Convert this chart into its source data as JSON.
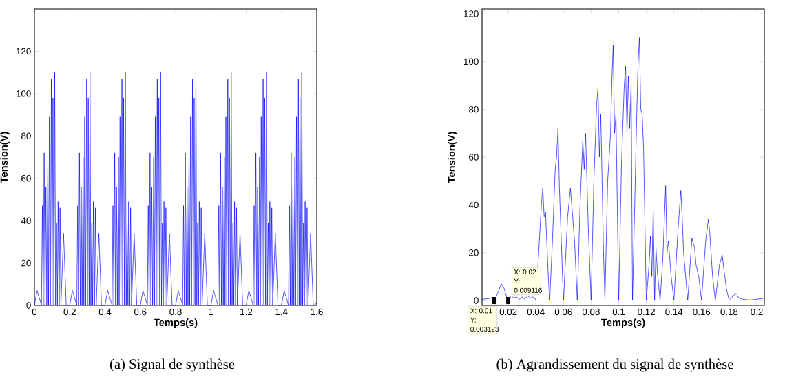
{
  "chart_data": [
    {
      "type": "line",
      "xlabel": "Temps(s)",
      "ylabel": "Tension(V)",
      "color": "#0000ff",
      "xlim": [
        0,
        1.6
      ],
      "ylim": [
        0,
        140
      ],
      "xticks": [
        0,
        0.2,
        0.4,
        0.6,
        0.8,
        1,
        1.2,
        1.4,
        1.6
      ],
      "yticks": [
        0,
        20,
        40,
        60,
        80,
        100,
        120
      ],
      "x": [
        0,
        0.015,
        0.04,
        0.045,
        0.05,
        0.055,
        0.06,
        0.065,
        0.07,
        0.076,
        0.08,
        0.085,
        0.09,
        0.096,
        0.1,
        0.105,
        0.11,
        0.115,
        0.12,
        0.125,
        0.13,
        0.134,
        0.14,
        0.145,
        0.15,
        0.165,
        0.18,
        0.2,
        0.215,
        0.24,
        0.245,
        0.25,
        0.255,
        0.26,
        0.265,
        0.27,
        0.276,
        0.28,
        0.285,
        0.29,
        0.296,
        0.3,
        0.305,
        0.31,
        0.315,
        0.32,
        0.325,
        0.33,
        0.334,
        0.34,
        0.345,
        0.35,
        0.365,
        0.38,
        0.4,
        0.415,
        0.44,
        0.445,
        0.45,
        0.455,
        0.46,
        0.465,
        0.47,
        0.476,
        0.48,
        0.485,
        0.49,
        0.496,
        0.5,
        0.505,
        0.51,
        0.515,
        0.52,
        0.525,
        0.53,
        0.534,
        0.54,
        0.545,
        0.55,
        0.565,
        0.58,
        0.6,
        0.615,
        0.64,
        0.645,
        0.65,
        0.655,
        0.66,
        0.665,
        0.67,
        0.676,
        0.68,
        0.685,
        0.69,
        0.696,
        0.7,
        0.705,
        0.71,
        0.715,
        0.72,
        0.725,
        0.73,
        0.734,
        0.74,
        0.745,
        0.75,
        0.765,
        0.78,
        0.8,
        0.815,
        0.84,
        0.845,
        0.85,
        0.855,
        0.86,
        0.865,
        0.87,
        0.876,
        0.88,
        0.885,
        0.89,
        0.896,
        0.9,
        0.905,
        0.91,
        0.915,
        0.92,
        0.925,
        0.93,
        0.934,
        0.94,
        0.945,
        0.95,
        0.965,
        0.98,
        1.0,
        1.015,
        1.04,
        1.045,
        1.05,
        1.055,
        1.06,
        1.065,
        1.07,
        1.076,
        1.08,
        1.085,
        1.09,
        1.096,
        1.1,
        1.105,
        1.11,
        1.115,
        1.12,
        1.125,
        1.13,
        1.134,
        1.14,
        1.145,
        1.15,
        1.165,
        1.18,
        1.2,
        1.215,
        1.24,
        1.245,
        1.25,
        1.255,
        1.26,
        1.265,
        1.27,
        1.276,
        1.28,
        1.285,
        1.29,
        1.296,
        1.3,
        1.305,
        1.31,
        1.315,
        1.32,
        1.325,
        1.33,
        1.334,
        1.34,
        1.345,
        1.35,
        1.365,
        1.38,
        1.4,
        1.415,
        1.44,
        1.445,
        1.45,
        1.455,
        1.46,
        1.465,
        1.47,
        1.476,
        1.48,
        1.485,
        1.49,
        1.496,
        1.5,
        1.505,
        1.51,
        1.515,
        1.52,
        1.525,
        1.53,
        1.534,
        1.54,
        1.545,
        1.55,
        1.565,
        1.58,
        1.6
      ],
      "values": [
        0,
        7,
        0,
        47,
        0,
        72,
        0,
        56,
        0,
        70,
        0,
        89,
        0,
        107,
        0,
        98,
        0,
        110,
        0,
        39,
        0,
        49,
        0,
        46,
        0,
        34,
        0,
        0,
        7,
        0,
        47,
        0,
        72,
        0,
        56,
        0,
        70,
        0,
        89,
        0,
        107,
        0,
        98,
        0,
        110,
        0,
        39,
        0,
        49,
        0,
        46,
        0,
        34,
        0,
        0,
        7,
        0,
        47,
        0,
        72,
        0,
        56,
        0,
        70,
        0,
        89,
        0,
        107,
        0,
        98,
        0,
        110,
        0,
        39,
        0,
        49,
        0,
        46,
        0,
        34,
        0,
        0,
        7,
        0,
        47,
        0,
        72,
        0,
        56,
        0,
        70,
        0,
        89,
        0,
        107,
        0,
        98,
        0,
        110,
        0,
        39,
        0,
        49,
        0,
        46,
        0,
        34,
        0,
        0,
        7,
        0,
        47,
        0,
        72,
        0,
        56,
        0,
        70,
        0,
        89,
        0,
        107,
        0,
        98,
        0,
        110,
        0,
        39,
        0,
        49,
        0,
        46,
        0,
        34,
        0,
        0,
        7,
        0,
        47,
        0,
        72,
        0,
        56,
        0,
        70,
        0,
        89,
        0,
        107,
        0,
        98,
        0,
        110,
        0,
        39,
        0,
        49,
        0,
        46,
        0,
        34,
        0,
        0,
        7,
        0,
        47,
        0,
        72,
        0,
        56,
        0,
        70,
        0,
        89,
        0,
        107,
        0,
        98,
        0,
        110,
        0,
        39,
        0,
        49,
        0,
        46,
        0,
        34,
        0,
        0,
        7,
        0,
        47,
        0,
        72,
        0,
        56,
        0,
        70,
        0,
        89,
        0,
        107,
        0,
        98,
        0,
        110,
        0,
        39,
        0,
        49,
        0,
        46,
        0,
        34,
        0,
        1
      ],
      "annotations": [
        "(a) Signal de synthèse"
      ]
    },
    {
      "type": "line",
      "xlabel": "Temps(s)",
      "ylabel": "Tension(V)",
      "color": "#0000ff",
      "xlim": [
        0.001,
        0.2055
      ],
      "ylim": [
        -2,
        122
      ],
      "xticks": [
        0.02,
        0.04,
        0.06,
        0.08,
        0.1,
        0.12,
        0.14,
        0.16,
        0.18,
        0.2
      ],
      "yticks": [
        0,
        20,
        40,
        60,
        80,
        100,
        120
      ],
      "x": [
        0.001,
        0.006,
        0.008,
        0.01,
        0.013,
        0.015,
        0.017,
        0.019,
        0.02,
        0.022,
        0.024,
        0.026,
        0.028,
        0.03,
        0.032,
        0.034,
        0.036,
        0.038,
        0.04,
        0.042,
        0.044,
        0.045,
        0.046,
        0.047,
        0.049,
        0.05,
        0.052,
        0.054,
        0.055,
        0.056,
        0.057,
        0.059,
        0.06,
        0.063,
        0.065,
        0.066,
        0.068,
        0.07,
        0.072,
        0.074,
        0.075,
        0.076,
        0.078,
        0.08,
        0.082,
        0.084,
        0.085,
        0.086,
        0.087,
        0.089,
        0.09,
        0.092,
        0.094,
        0.095,
        0.096,
        0.097,
        0.098,
        0.1,
        0.102,
        0.104,
        0.105,
        0.106,
        0.107,
        0.108,
        0.109,
        0.11,
        0.113,
        0.114,
        0.115,
        0.116,
        0.117,
        0.118,
        0.12,
        0.122,
        0.123,
        0.124,
        0.125,
        0.126,
        0.127,
        0.128,
        0.13,
        0.132,
        0.134,
        0.135,
        0.136,
        0.138,
        0.14,
        0.143,
        0.145,
        0.146,
        0.147,
        0.15,
        0.153,
        0.155,
        0.156,
        0.158,
        0.16,
        0.163,
        0.165,
        0.166,
        0.168,
        0.17,
        0.173,
        0.175,
        0.176,
        0.178,
        0.18,
        0.183,
        0.185,
        0.187,
        0.19,
        0.195,
        0.2,
        0.2055
      ],
      "values": [
        0.5,
        0.8,
        1.2,
        0,
        4,
        7,
        5,
        1,
        0,
        2,
        1,
        1.5,
        0.5,
        1.5,
        0.5,
        2,
        1,
        1.5,
        0.3,
        20,
        40,
        47,
        35,
        37,
        10,
        0,
        25,
        55,
        60,
        72,
        48,
        15,
        0,
        35,
        47,
        40,
        25,
        0,
        40,
        67,
        55,
        70,
        30,
        0,
        50,
        82,
        89,
        60,
        78,
        20,
        0,
        50,
        69,
        91,
        107,
        70,
        78,
        0,
        57,
        90,
        98,
        70,
        94,
        72,
        91,
        0,
        76,
        99,
        110,
        80,
        78,
        64,
        0,
        15,
        27,
        10,
        38,
        0,
        22,
        12,
        0,
        18,
        48,
        20,
        25,
        10,
        0,
        30,
        46,
        35,
        20,
        0,
        26,
        22,
        15,
        10,
        0,
        25,
        34,
        28,
        10,
        0,
        15,
        19,
        14,
        5,
        0,
        2,
        3,
        1,
        0.5,
        0.2,
        0.5,
        1
      ],
      "annotations": [
        {
          "text": "X: 0.01 Y: 0.003123",
          "x": 0.01,
          "y": 0.003123
        },
        {
          "text": "X: 0.02 Y: 0.009116",
          "x": 0.02,
          "y": 0.009116
        },
        "(b) Agrandissement du signal de synthèse"
      ]
    }
  ]
}
